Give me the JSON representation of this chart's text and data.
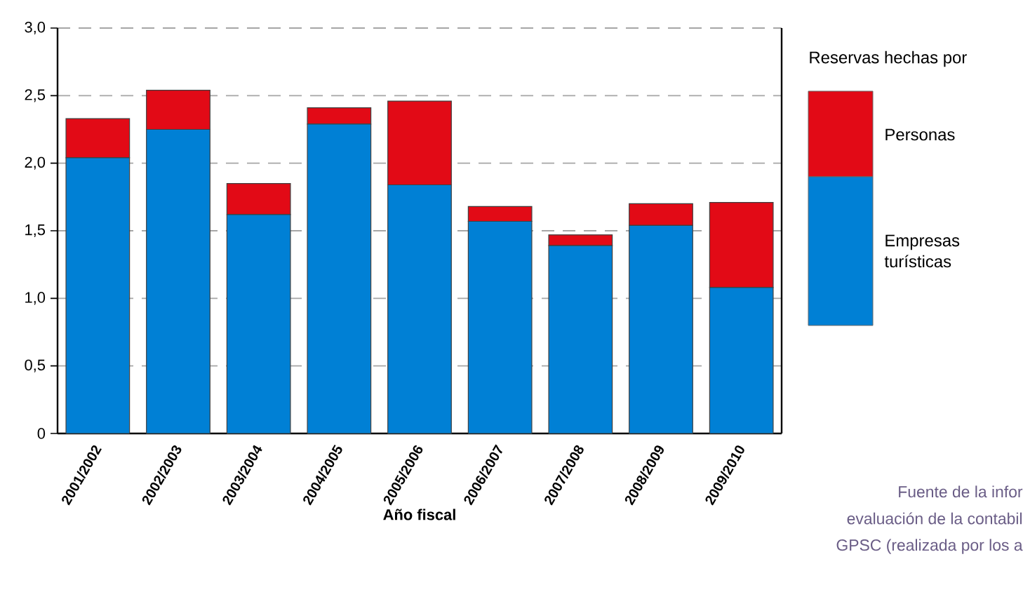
{
  "chart_data": {
    "type": "bar",
    "stacked": true,
    "xlabel": "Año fiscal",
    "legend_title": "Reservas hechas por",
    "legend": "right",
    "grid": "y",
    "categories": [
      "2001/2002",
      "2002/2003",
      "2003/2004",
      "2004/2005",
      "2005/2006",
      "2006/2007",
      "2007/2008",
      "2008/2009",
      "2009/2010"
    ],
    "series": [
      {
        "name": "Empresas turísticas",
        "color": "#0080d5",
        "values": [
          2.04,
          2.25,
          1.62,
          2.29,
          1.84,
          1.57,
          1.39,
          1.54,
          1.08
        ]
      },
      {
        "name": "Personas",
        "color": "#e20a16",
        "values": [
          0.29,
          0.29,
          0.23,
          0.12,
          0.62,
          0.11,
          0.08,
          0.16,
          0.63
        ]
      }
    ],
    "ylim": [
      0,
      3.0
    ],
    "yticks": [
      {
        "value": 0,
        "label": "0"
      },
      {
        "value": 0.5,
        "label": "0,5"
      },
      {
        "value": 1.0,
        "label": "1,0"
      },
      {
        "value": 1.5,
        "label": "1,5"
      },
      {
        "value": 2.0,
        "label": "2,0"
      },
      {
        "value": 2.5,
        "label": "2,5"
      },
      {
        "value": 3.0,
        "label": "3,0"
      }
    ],
    "annotations": [
      "Fuente de la infor",
      "evaluación de la contabil",
      "GPSC (realizada por los a"
    ]
  }
}
